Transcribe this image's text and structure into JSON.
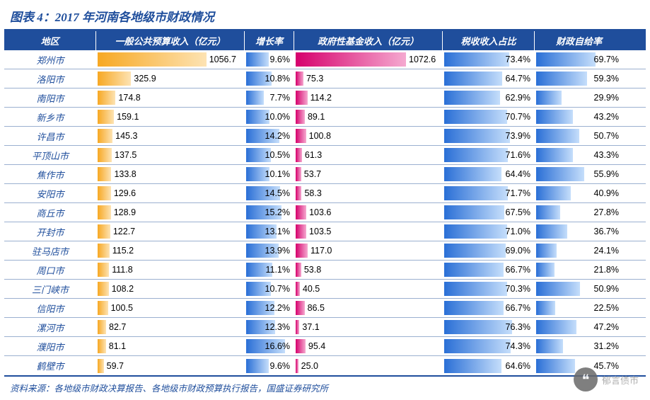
{
  "title": "图表 4：2017 年河南各地级市财政情况",
  "source": "资料来源：各地级市财政决算报告、各地级市财政预算执行报告，国盛证券研究所",
  "watermark": "郁言债市",
  "colors": {
    "header_bg": "#1f4e9c",
    "header_text": "#ffffff",
    "row_border": "#9bb0d0",
    "region_text": "#1f4e9c",
    "value_text": "#000000",
    "orange_from": "#f7a823",
    "orange_to": "#fde3b3",
    "blue_from": "#2a6fd6",
    "blue_to": "#c5defb",
    "magenta_from": "#d6006c",
    "magenta_to": "#f5a9d0"
  },
  "columns": [
    {
      "key": "region",
      "label": "地区",
      "cls": "col-region"
    },
    {
      "key": "budget",
      "label": "一般公共预算收入（亿元）",
      "cls": "col-budget",
      "color": "orange",
      "max": 1100,
      "decimals": 1
    },
    {
      "key": "growth",
      "label": "增长率",
      "cls": "col-growth",
      "color": "blue",
      "max": 20,
      "suffix": "%",
      "overlay": true,
      "decimals": 1
    },
    {
      "key": "fund",
      "label": "政府性基金收入（亿元）",
      "cls": "col-fund",
      "color": "magenta",
      "max": 1100,
      "decimals": 1
    },
    {
      "key": "tax",
      "label": "税收收入占比",
      "cls": "col-tax",
      "color": "blue",
      "max": 100,
      "suffix": "%",
      "overlay": true,
      "decimals": 1
    },
    {
      "key": "self",
      "label": "财政自给率",
      "cls": "col-self",
      "color": "blue",
      "max": 100,
      "suffix": "%",
      "overlay": true,
      "decimals": 1
    }
  ],
  "rows": [
    {
      "region": "郑州市",
      "budget": 1056.7,
      "growth": 9.6,
      "fund": 1072.6,
      "tax": 73.4,
      "self": 69.7
    },
    {
      "region": "洛阳市",
      "budget": 325.9,
      "growth": 10.8,
      "fund": 75.3,
      "tax": 64.7,
      "self": 59.3
    },
    {
      "region": "南阳市",
      "budget": 174.8,
      "growth": 7.7,
      "fund": 114.2,
      "tax": 62.9,
      "self": 29.9
    },
    {
      "region": "新乡市",
      "budget": 159.1,
      "growth": 10.0,
      "fund": 89.1,
      "tax": 70.7,
      "self": 43.2
    },
    {
      "region": "许昌市",
      "budget": 145.3,
      "growth": 14.2,
      "fund": 100.8,
      "tax": 73.9,
      "self": 50.7
    },
    {
      "region": "平顶山市",
      "budget": 137.5,
      "growth": 10.5,
      "fund": 61.3,
      "tax": 71.6,
      "self": 43.3
    },
    {
      "region": "焦作市",
      "budget": 133.8,
      "growth": 10.1,
      "fund": 53.7,
      "tax": 64.4,
      "self": 55.9
    },
    {
      "region": "安阳市",
      "budget": 129.6,
      "growth": 14.5,
      "fund": 58.3,
      "tax": 71.7,
      "self": 40.9
    },
    {
      "region": "商丘市",
      "budget": 128.9,
      "growth": 15.2,
      "fund": 103.6,
      "tax": 67.5,
      "self": 27.8
    },
    {
      "region": "开封市",
      "budget": 122.7,
      "growth": 13.1,
      "fund": 103.5,
      "tax": 71.0,
      "self": 36.7
    },
    {
      "region": "驻马店市",
      "budget": 115.2,
      "growth": 13.9,
      "fund": 117.0,
      "tax": 69.0,
      "self": 24.1
    },
    {
      "region": "周口市",
      "budget": 111.8,
      "growth": 11.1,
      "fund": 53.8,
      "tax": 66.7,
      "self": 21.8
    },
    {
      "region": "三门峡市",
      "budget": 108.2,
      "growth": 10.7,
      "fund": 40.5,
      "tax": 70.3,
      "self": 50.9
    },
    {
      "region": "信阳市",
      "budget": 100.5,
      "growth": 12.2,
      "fund": 86.5,
      "tax": 66.7,
      "self": 22.5
    },
    {
      "region": "漯河市",
      "budget": 82.7,
      "growth": 12.3,
      "fund": 37.1,
      "tax": 76.3,
      "self": 47.2
    },
    {
      "region": "濮阳市",
      "budget": 81.1,
      "growth": 16.6,
      "fund": 95.4,
      "tax": 74.3,
      "self": 31.2
    },
    {
      "region": "鹤壁市",
      "budget": 59.7,
      "growth": 9.6,
      "fund": 25.0,
      "tax": 64.6,
      "self": 45.7
    }
  ]
}
